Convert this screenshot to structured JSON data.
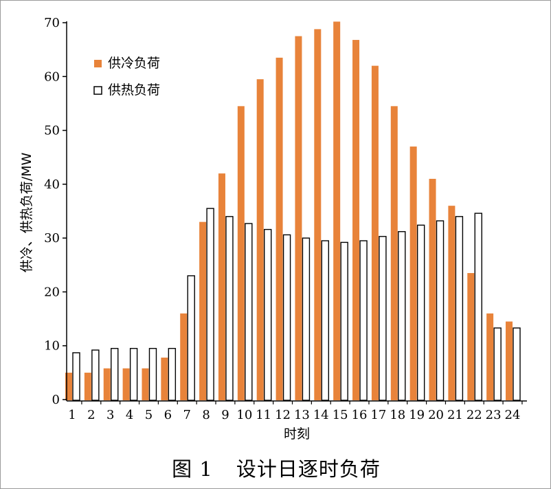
{
  "chart_data": {
    "type": "bar",
    "xlabel": "时刻",
    "ylabel": "供冷、供热负荷/MW",
    "ylim": [
      0,
      70
    ],
    "yticks": [
      0,
      10,
      20,
      30,
      40,
      50,
      60,
      70
    ],
    "grid": false,
    "legend_position": "top-left",
    "categories": [
      "1",
      "2",
      "3",
      "4",
      "5",
      "6",
      "7",
      "8",
      "9",
      "10",
      "11",
      "12",
      "13",
      "14",
      "15",
      "16",
      "17",
      "18",
      "19",
      "20",
      "21",
      "22",
      "23",
      "24"
    ],
    "series": [
      {
        "name": "供冷负荷",
        "color": "#e8833a",
        "values": [
          5,
          5,
          5.8,
          5.8,
          5.8,
          7.8,
          16,
          33,
          42,
          54.5,
          59.5,
          63.5,
          67.5,
          68.8,
          70.2,
          66.8,
          62,
          54.5,
          47,
          41,
          36,
          23.5,
          16,
          14.5
        ]
      },
      {
        "name": "供热负荷",
        "color": "#ffffff",
        "values": [
          8.7,
          9.2,
          9.5,
          9.5,
          9.5,
          9.5,
          23,
          35.5,
          34,
          32.7,
          31.6,
          30.6,
          30,
          29.5,
          29.2,
          29.5,
          30.3,
          31.2,
          32.4,
          33.2,
          34,
          34.6,
          13.3,
          13.3
        ]
      }
    ]
  },
  "caption": {
    "number": "图 1",
    "title": "设计日逐时负荷"
  }
}
